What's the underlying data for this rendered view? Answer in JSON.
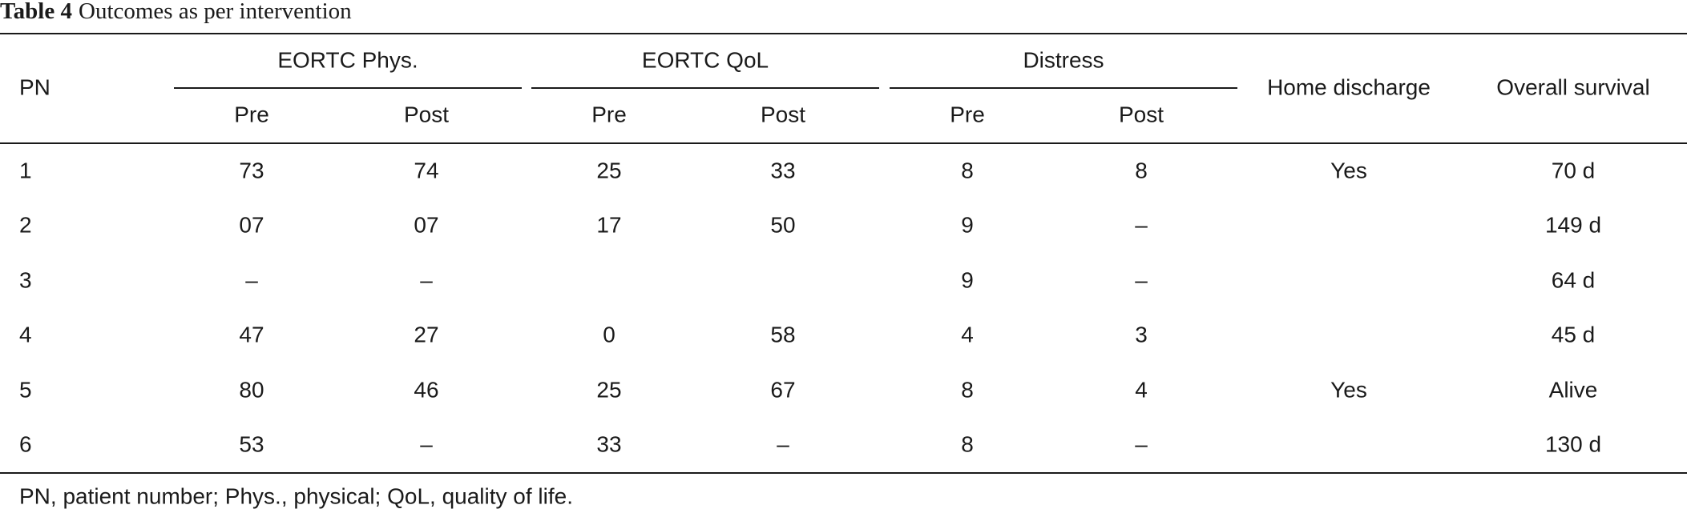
{
  "caption": {
    "label": "Table 4",
    "title": "Outcomes as per intervention"
  },
  "table": {
    "groups": [
      "EORTC Phys.",
      "EORTC QoL",
      "Distress"
    ],
    "columns": [
      "PN",
      "Pre",
      "Post",
      "Pre",
      "Post",
      "Pre",
      "Post",
      "Home discharge",
      "Overall survival"
    ],
    "rows": [
      [
        "1",
        "73",
        "74",
        "25",
        "33",
        "8",
        "8",
        "Yes",
        "70 d"
      ],
      [
        "2",
        "07",
        "07",
        "17",
        "50",
        "9",
        "–",
        null,
        "149 d"
      ],
      [
        "3",
        "–",
        "–",
        null,
        null,
        "9",
        "–",
        null,
        "64 d"
      ],
      [
        "4",
        "47",
        "27",
        "0",
        "58",
        "4",
        "3",
        null,
        "45 d"
      ],
      [
        "5",
        "80",
        "46",
        "25",
        "67",
        "8",
        "4",
        "Yes",
        "Alive"
      ],
      [
        "6",
        "53",
        "–",
        "33",
        "–",
        "8",
        "–",
        null,
        "130 d"
      ]
    ]
  },
  "footnote": "PN, patient number; Phys., physical; QoL, quality of life."
}
